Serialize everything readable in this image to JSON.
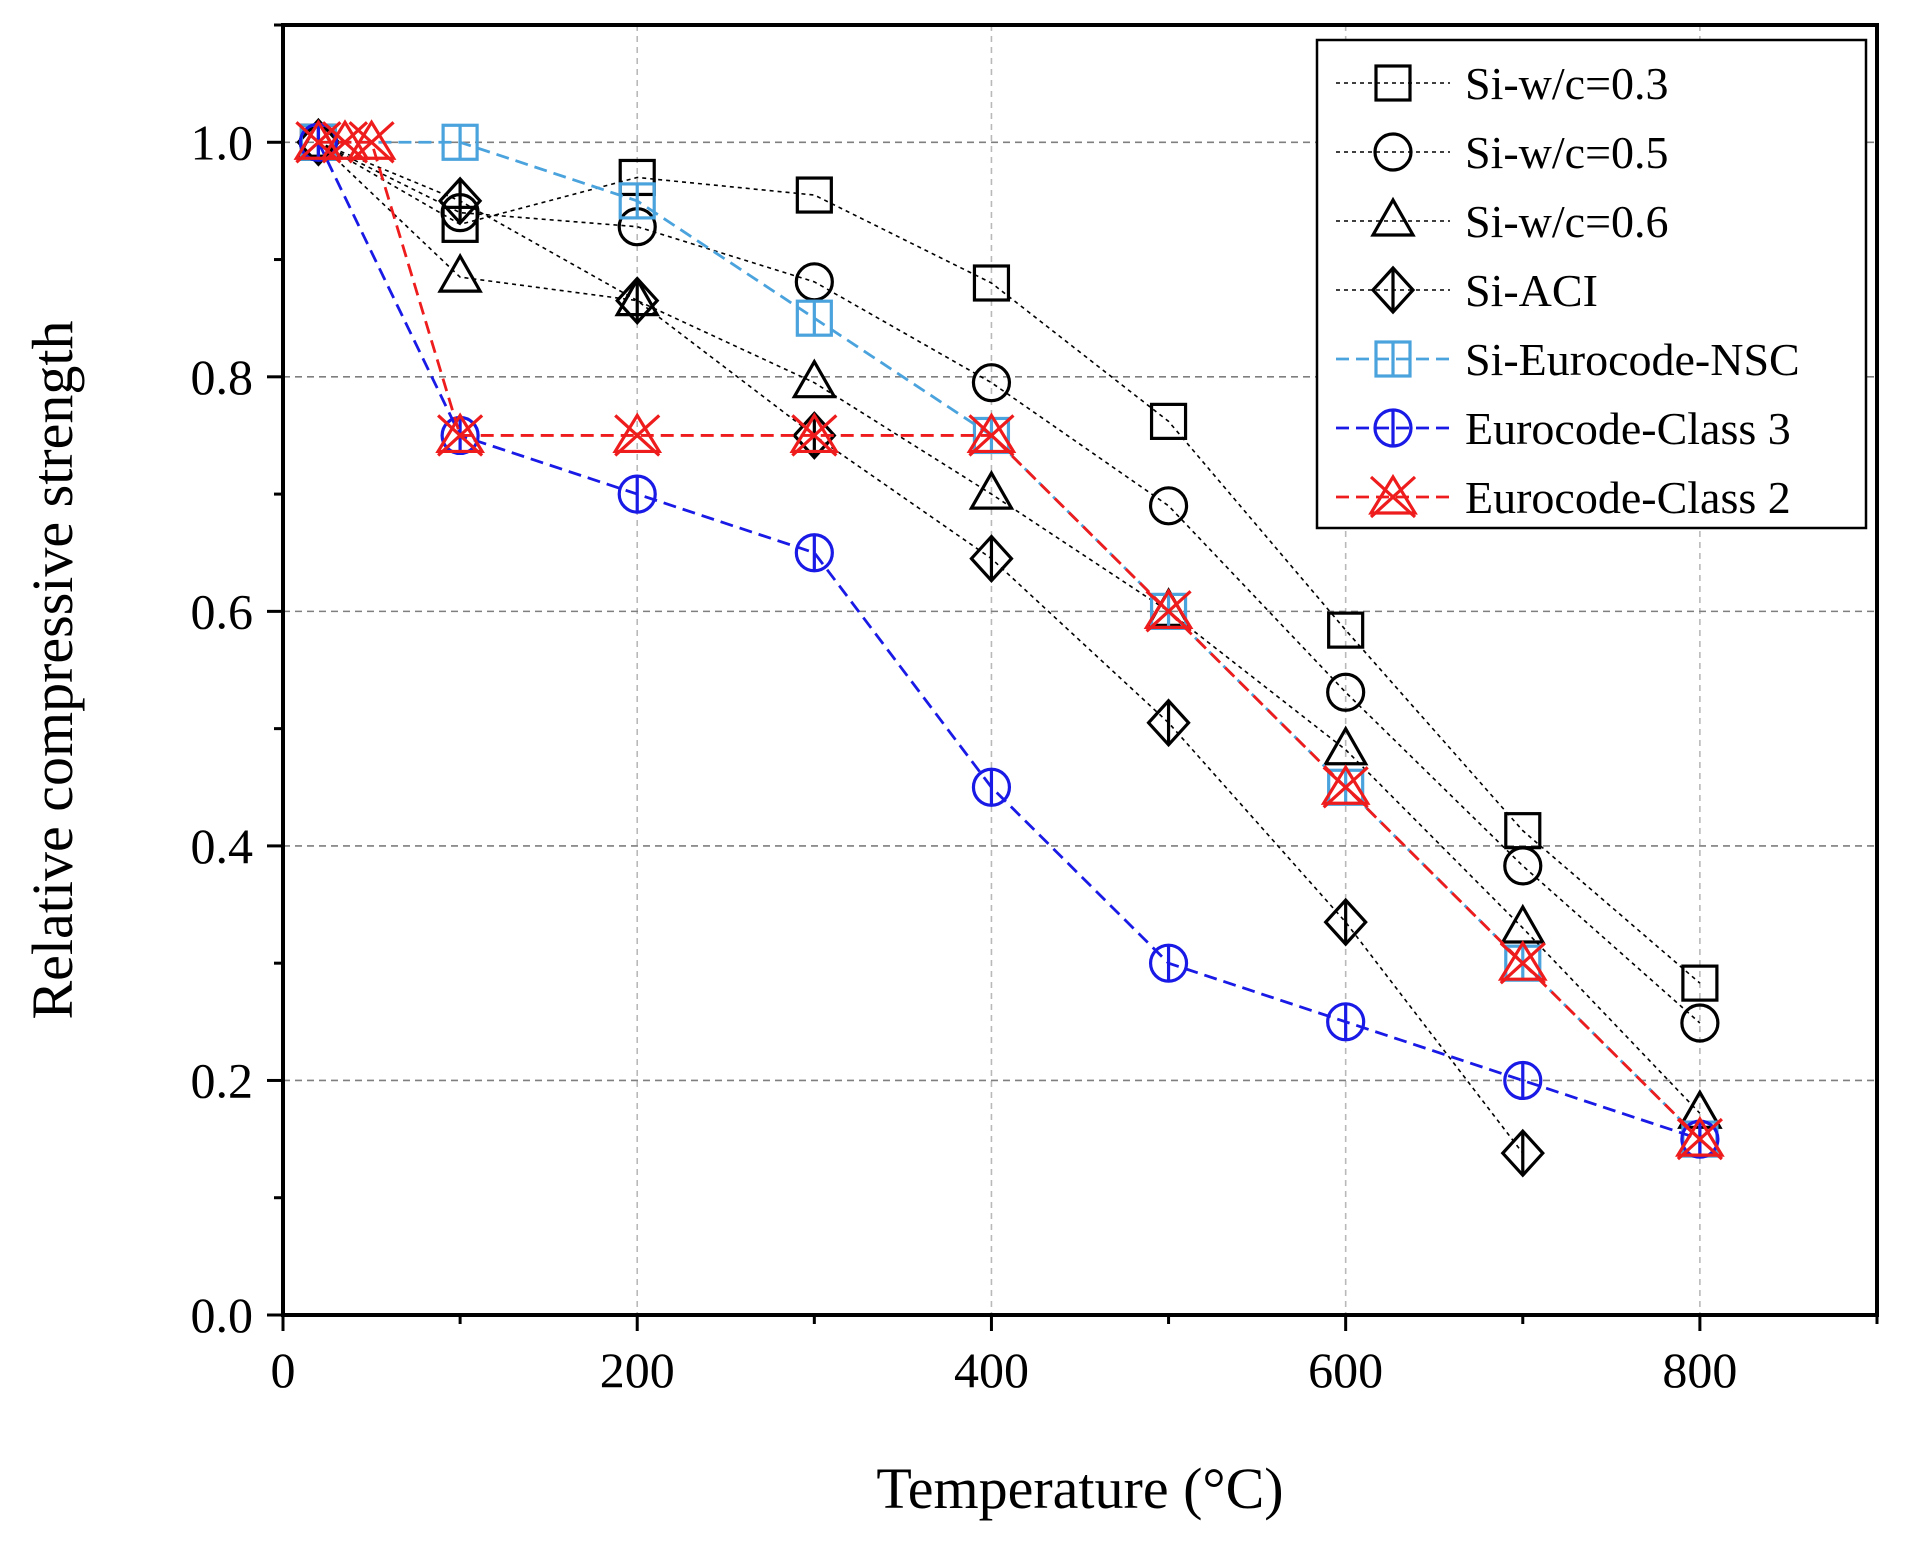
{
  "chart_data": {
    "type": "line",
    "title": "",
    "xlabel": "Temperature (°C)",
    "ylabel": "Relative compressive strength",
    "xlim": [
      0,
      900
    ],
    "ylim": [
      0,
      1.1
    ],
    "xticks": [
      0,
      200,
      400,
      600,
      800
    ],
    "xtick_labels": [
      "0",
      "200",
      "400",
      "600",
      "800"
    ],
    "yticks": [
      0.0,
      0.2,
      0.4,
      0.6,
      0.8,
      1.0
    ],
    "ytick_labels": [
      "0.0",
      "0.2",
      "0.4",
      "0.6",
      "0.8",
      "1.0"
    ],
    "grid": true,
    "legend_position": "top-right",
    "series": [
      {
        "name": "Si-w/c=0.3",
        "marker": "square",
        "color": "#000000",
        "line_style": "dotted",
        "x": [
          20,
          100,
          200,
          300,
          400,
          500,
          600,
          700,
          800
        ],
        "y": [
          1.0,
          0.93,
          0.97,
          0.955,
          0.88,
          0.762,
          0.584,
          0.413,
          0.283
        ]
      },
      {
        "name": "Si-w/c=0.5",
        "marker": "circle",
        "color": "#000000",
        "line_style": "dotted",
        "x": [
          20,
          100,
          200,
          300,
          400,
          500,
          600,
          700,
          800
        ],
        "y": [
          1.0,
          0.94,
          0.928,
          0.881,
          0.795,
          0.69,
          0.531,
          0.383,
          0.249
        ]
      },
      {
        "name": "Si-w/c=0.6",
        "marker": "triangle",
        "color": "#000000",
        "line_style": "dotted",
        "x": [
          20,
          100,
          200,
          300,
          400,
          500,
          600,
          700,
          800
        ],
        "y": [
          1.0,
          0.885,
          0.865,
          0.795,
          0.7,
          0.6,
          0.482,
          0.33,
          0.172
        ]
      },
      {
        "name": "Si-ACI",
        "marker": "diamond",
        "color": "#000000",
        "line_style": "dotted",
        "x": [
          20,
          100,
          200,
          300,
          400,
          500,
          600,
          700
        ],
        "y": [
          1.0,
          0.95,
          0.865,
          0.75,
          0.645,
          0.505,
          0.335,
          0.138
        ]
      },
      {
        "name": "Si-Eurocode-NSC",
        "marker": "square-vline",
        "color": "#4ba3dd",
        "line_style": "dashed",
        "x": [
          20,
          100,
          200,
          300,
          400,
          500,
          600,
          700,
          800
        ],
        "y": [
          1.0,
          1.0,
          0.95,
          0.85,
          0.75,
          0.6,
          0.45,
          0.3,
          0.15
        ]
      },
      {
        "name": "Eurocode-Class 3",
        "marker": "circle-vline",
        "color": "#1a1ae6",
        "line_style": "dashed",
        "x": [
          20,
          100,
          200,
          300,
          400,
          500,
          600,
          700,
          800
        ],
        "y": [
          1.0,
          0.75,
          0.7,
          0.65,
          0.45,
          0.3,
          0.25,
          0.2,
          0.15
        ]
      },
      {
        "name": "Eurocode-Class 2",
        "marker": "triangle-x",
        "color": "#ee1c1c",
        "line_style": "dashed",
        "x": [
          20,
          35,
          50,
          100,
          200,
          300,
          400,
          500,
          600,
          700,
          800
        ],
        "y": [
          1.0,
          1.0,
          1.0,
          0.75,
          0.75,
          0.75,
          0.75,
          0.6,
          0.45,
          0.3,
          0.15
        ]
      }
    ]
  }
}
